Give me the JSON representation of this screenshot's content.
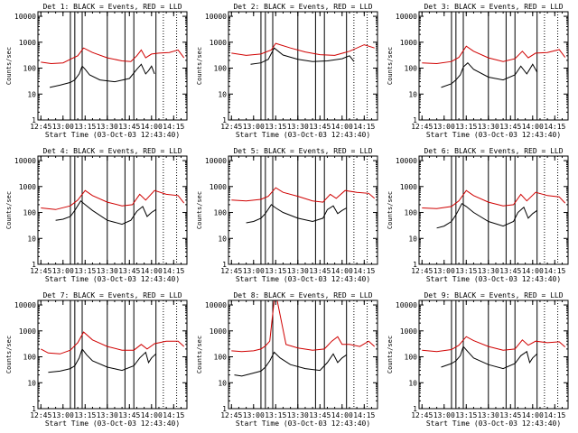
{
  "figure": {
    "background": "#ffffff",
    "events_color": "#000000",
    "lld_color": "#d00000"
  },
  "chart_data": [
    {
      "type": "line",
      "title": "Det 1: BLACK = Events, RED = LLD",
      "xlabel": "Start Time (03-Oct-03 12:43:40)",
      "ylabel": "Counts/sec",
      "ylog": true,
      "ylim": [
        1,
        15000
      ],
      "yticks": [
        "1",
        "10",
        "100",
        "1000",
        "10000"
      ],
      "xticks": [
        "12:45",
        "13:00",
        "13:15",
        "13:30",
        "13:45",
        "14:00",
        "14:15"
      ],
      "series": [
        {
          "role": "black",
          "x": [
            "12:51",
            "12:58",
            "13:05",
            "13:08",
            "13:11",
            "13:13",
            "13:15",
            "13:18",
            "13:25",
            "13:35",
            "13:45",
            "13:50",
            "13:53",
            "13:56",
            "13:58",
            "14:00",
            "14:02"
          ],
          "y": [
            18,
            22,
            28,
            35,
            60,
            120,
            90,
            55,
            35,
            30,
            40,
            90,
            140,
            60,
            80,
            120,
            60
          ]
        },
        {
          "role": "red",
          "x": [
            "12:45",
            "12:52",
            "13:00",
            "13:05",
            "13:10",
            "13:14",
            "13:20",
            "13:30",
            "13:40",
            "13:46",
            "13:50",
            "13:53",
            "13:56",
            "14:00",
            "14:05",
            "14:12",
            "14:18",
            "14:22"
          ],
          "y": [
            170,
            150,
            160,
            220,
            300,
            600,
            400,
            250,
            190,
            180,
            300,
            500,
            250,
            350,
            380,
            400,
            500,
            250
          ]
        }
      ],
      "vlines": [
        "13:05",
        "13:08",
        "13:13",
        "13:30",
        "13:42",
        "13:48",
        "14:03"
      ],
      "vdots": [
        "14:08",
        "14:17"
      ]
    },
    {
      "type": "line",
      "title": "Det 2: BLACK = Events, RED = LLD",
      "xlabel": "Start Time (03-Oct-03 12:43:40)",
      "ylabel": "Counts/sec",
      "ylog": true,
      "ylim": [
        1,
        15000
      ],
      "yticks": [
        "1",
        "10",
        "100",
        "1000",
        "10000"
      ],
      "xticks": [
        "12:45",
        "13:00",
        "13:15",
        "13:30",
        "13:45",
        "14:00",
        "14:15"
      ],
      "series": [
        {
          "role": "black",
          "x": [
            "12:58",
            "13:05",
            "13:10",
            "13:14",
            "13:20",
            "13:30",
            "13:40",
            "13:50",
            "14:00",
            "14:05",
            "14:08"
          ],
          "y": [
            140,
            160,
            220,
            600,
            320,
            220,
            180,
            190,
            230,
            300,
            180
          ]
        },
        {
          "role": "red",
          "x": [
            "12:45",
            "12:55",
            "13:05",
            "13:12",
            "13:15",
            "13:25",
            "13:35",
            "13:45",
            "13:55",
            "14:05",
            "14:15",
            "14:22"
          ],
          "y": [
            380,
            310,
            350,
            500,
            900,
            600,
            420,
            330,
            310,
            450,
            800,
            600
          ]
        }
      ],
      "vlines": [
        "13:05",
        "13:08",
        "13:13",
        "13:30",
        "13:42",
        "13:48",
        "14:03"
      ],
      "vdots": [
        "14:08",
        "14:17"
      ]
    },
    {
      "type": "line",
      "title": "Det 3: BLACK = Events, RED = LLD",
      "xlabel": "Start Time (03-Oct-03 12:43:40)",
      "ylabel": "Counts/sec",
      "ylog": true,
      "ylim": [
        1,
        15000
      ],
      "yticks": [
        "1",
        "10",
        "100",
        "1000",
        "10000"
      ],
      "xticks": [
        "12:45",
        "13:00",
        "13:15",
        "13:30",
        "13:45",
        "14:00",
        "14:15"
      ],
      "series": [
        {
          "role": "black",
          "x": [
            "12:58",
            "13:05",
            "13:08",
            "13:11",
            "13:13",
            "13:16",
            "13:20",
            "13:30",
            "13:40",
            "13:48",
            "13:52",
            "13:56",
            "13:58",
            "14:00",
            "14:03"
          ],
          "y": [
            18,
            25,
            35,
            55,
            110,
            160,
            90,
            45,
            35,
            55,
            120,
            60,
            90,
            140,
            70
          ]
        },
        {
          "role": "red",
          "x": [
            "12:45",
            "12:55",
            "13:05",
            "13:10",
            "13:15",
            "13:20",
            "13:30",
            "13:40",
            "13:48",
            "13:53",
            "13:57",
            "14:02",
            "14:10",
            "14:18",
            "14:22"
          ],
          "y": [
            160,
            150,
            180,
            260,
            700,
            450,
            250,
            180,
            230,
            450,
            250,
            380,
            400,
            520,
            260
          ]
        }
      ],
      "vlines": [
        "13:05",
        "13:08",
        "13:13",
        "13:30",
        "13:42",
        "13:48",
        "14:03"
      ],
      "vdots": [
        "14:08",
        "14:17"
      ]
    },
    {
      "type": "line",
      "title": "Det 4: BLACK = Events, RED = LLD",
      "xlabel": "Start Time (03-Oct-03 12:43:40)",
      "ylabel": "Counts/sec",
      "ylog": true,
      "ylim": [
        1,
        15000
      ],
      "yticks": [
        "1",
        "10",
        "100",
        "1000",
        "10000"
      ],
      "xticks": [
        "12:45",
        "13:00",
        "13:15",
        "13:30",
        "13:45",
        "14:00",
        "14:15"
      ],
      "series": [
        {
          "role": "black",
          "x": [
            "12:55",
            "13:00",
            "13:05",
            "13:08",
            "13:12",
            "13:15",
            "13:20",
            "13:30",
            "13:40",
            "13:46",
            "13:50",
            "13:54",
            "13:57",
            "14:00",
            "14:03"
          ],
          "y": [
            50,
            55,
            70,
            120,
            280,
            200,
            120,
            50,
            35,
            50,
            110,
            170,
            70,
            100,
            130
          ]
        },
        {
          "role": "red",
          "x": [
            "12:45",
            "12:55",
            "13:05",
            "13:10",
            "13:15",
            "13:20",
            "13:30",
            "13:40",
            "13:47",
            "13:52",
            "13:56",
            "14:02",
            "14:10",
            "14:18",
            "14:22"
          ],
          "y": [
            150,
            130,
            180,
            300,
            700,
            450,
            250,
            180,
            200,
            500,
            300,
            700,
            500,
            450,
            230
          ]
        }
      ],
      "vlines": [
        "13:05",
        "13:08",
        "13:13",
        "13:30",
        "13:42",
        "13:48",
        "14:03"
      ],
      "vdots": [
        "14:08",
        "14:17"
      ]
    },
    {
      "type": "line",
      "title": "Det 5: BLACK = Events, RED = LLD",
      "xlabel": "Start Time (03-Oct-03 12:43:40)",
      "ylabel": "Counts/sec",
      "ylog": true,
      "ylim": [
        1,
        15000
      ],
      "yticks": [
        "1",
        "10",
        "100",
        "1000",
        "10000"
      ],
      "xticks": [
        "12:45",
        "13:00",
        "13:15",
        "13:30",
        "13:45",
        "14:00",
        "14:15"
      ],
      "series": [
        {
          "role": "black",
          "x": [
            "12:55",
            "13:00",
            "13:05",
            "13:08",
            "13:12",
            "13:15",
            "13:20",
            "13:30",
            "13:40",
            "13:47",
            "13:50",
            "13:54",
            "13:57",
            "14:00",
            "14:03"
          ],
          "y": [
            40,
            45,
            60,
            90,
            200,
            150,
            100,
            60,
            45,
            60,
            130,
            180,
            90,
            120,
            150
          ]
        },
        {
          "role": "red",
          "x": [
            "12:45",
            "12:55",
            "13:05",
            "13:10",
            "13:15",
            "13:20",
            "13:30",
            "13:40",
            "13:47",
            "13:52",
            "13:56",
            "14:02",
            "14:10",
            "14:18",
            "14:22"
          ],
          "y": [
            300,
            280,
            320,
            420,
            900,
            600,
            420,
            280,
            250,
            500,
            350,
            700,
            600,
            550,
            350
          ]
        }
      ],
      "vlines": [
        "13:05",
        "13:08",
        "13:13",
        "13:30",
        "13:42",
        "13:48",
        "14:03"
      ],
      "vdots": [
        "14:08",
        "14:17"
      ]
    },
    {
      "type": "line",
      "title": "Det 6: BLACK = Events, RED = LLD",
      "xlabel": "Start Time (03-Oct-03 12:43:40)",
      "ylabel": "Counts/sec",
      "ylog": true,
      "ylim": [
        1,
        15000
      ],
      "yticks": [
        "1",
        "10",
        "100",
        "1000",
        "10000"
      ],
      "xticks": [
        "12:45",
        "13:00",
        "13:15",
        "13:30",
        "13:45",
        "14:00",
        "14:15"
      ],
      "series": [
        {
          "role": "black",
          "x": [
            "12:55",
            "13:00",
            "13:05",
            "13:08",
            "13:12",
            "13:15",
            "13:20",
            "13:30",
            "13:40",
            "13:47",
            "13:50",
            "13:54",
            "13:57",
            "14:00",
            "14:03"
          ],
          "y": [
            25,
            30,
            45,
            80,
            220,
            170,
            100,
            45,
            30,
            45,
            100,
            160,
            60,
            90,
            120
          ]
        },
        {
          "role": "red",
          "x": [
            "12:45",
            "12:55",
            "13:05",
            "13:10",
            "13:15",
            "13:20",
            "13:30",
            "13:40",
            "13:47",
            "13:52",
            "13:56",
            "14:02",
            "14:10",
            "14:18",
            "14:22"
          ],
          "y": [
            150,
            140,
            170,
            280,
            700,
            450,
            250,
            180,
            200,
            500,
            280,
            600,
            450,
            400,
            230
          ]
        }
      ],
      "vlines": [
        "13:05",
        "13:08",
        "13:13",
        "13:30",
        "13:42",
        "13:48",
        "14:03"
      ],
      "vdots": [
        "14:08",
        "14:17"
      ]
    },
    {
      "type": "line",
      "title": "Det 7: BLACK = Events, RED = LLD",
      "xlabel": "Start Time (03-Oct-03 12:43:40)",
      "ylabel": "Counts/sec",
      "ylog": true,
      "ylim": [
        1,
        15000
      ],
      "yticks": [
        "1",
        "10",
        "100",
        "1000",
        "10000"
      ],
      "xticks": [
        "12:45",
        "13:00",
        "13:15",
        "13:30",
        "13:45",
        "14:00",
        "14:15"
      ],
      "series": [
        {
          "role": "black",
          "x": [
            "12:50",
            "12:58",
            "13:05",
            "13:08",
            "13:11",
            "13:13",
            "13:16",
            "13:20",
            "13:30",
            "13:40",
            "13:48",
            "13:52",
            "13:56",
            "13:58",
            "14:00",
            "14:03"
          ],
          "y": [
            25,
            28,
            35,
            45,
            90,
            200,
            120,
            70,
            40,
            30,
            45,
            90,
            150,
            60,
            90,
            130
          ]
        },
        {
          "role": "red",
          "x": [
            "12:45",
            "12:50",
            "12:58",
            "13:05",
            "13:10",
            "13:14",
            "13:20",
            "13:30",
            "13:40",
            "13:48",
            "13:53",
            "13:57",
            "14:02",
            "14:10",
            "14:18",
            "14:22"
          ],
          "y": [
            200,
            140,
            130,
            180,
            350,
            900,
            450,
            250,
            180,
            180,
            300,
            200,
            320,
            400,
            400,
            250
          ]
        }
      ],
      "vlines": [
        "13:05",
        "13:08",
        "13:13",
        "13:30",
        "13:42",
        "13:48",
        "14:03"
      ],
      "vdots": [
        "14:08",
        "14:17"
      ]
    },
    {
      "type": "line",
      "title": "Det 8: BLACK = Events, RED = LLD",
      "xlabel": "Start Time (03-Oct-03 12:43:40)",
      "ylabel": "Counts/sec",
      "ylog": true,
      "ylim": [
        1,
        15000
      ],
      "yticks": [
        "1",
        "10",
        "100",
        "1000",
        "10000"
      ],
      "xticks": [
        "12:45",
        "13:00",
        "13:15",
        "13:30",
        "13:45",
        "14:00",
        "14:15"
      ],
      "series": [
        {
          "role": "black",
          "x": [
            "12:47",
            "12:52",
            "12:58",
            "13:05",
            "13:08",
            "13:11",
            "13:14",
            "13:18",
            "13:25",
            "13:35",
            "13:45",
            "13:50",
            "13:54",
            "13:57",
            "14:00",
            "14:03"
          ],
          "y": [
            20,
            18,
            22,
            28,
            40,
            70,
            150,
            90,
            50,
            35,
            30,
            60,
            130,
            60,
            90,
            120
          ]
        },
        {
          "role": "red",
          "x": [
            "12:45",
            "12:52",
            "13:00",
            "13:05",
            "13:08",
            "13:11",
            "13:14",
            "13:16",
            "13:22",
            "13:30",
            "13:40",
            "13:48",
            "13:53",
            "13:57",
            "14:00",
            "14:05",
            "14:12",
            "14:18",
            "14:22"
          ],
          "y": [
            170,
            160,
            170,
            200,
            260,
            400,
            15000,
            15000,
            300,
            220,
            180,
            200,
            400,
            600,
            300,
            300,
            250,
            400,
            250
          ]
        }
      ],
      "vlines": [
        "13:05",
        "13:08",
        "13:13",
        "13:30",
        "13:42",
        "13:48",
        "14:03"
      ],
      "vdots": [
        "14:08",
        "14:17"
      ]
    },
    {
      "type": "line",
      "title": "Det 9: BLACK = Events, RED = LLD",
      "xlabel": "Start Time (03-Oct-03 12:43:40)",
      "ylabel": "Counts/sec",
      "ylog": true,
      "ylim": [
        1,
        15000
      ],
      "yticks": [
        "1",
        "10",
        "100",
        "1000",
        "10000"
      ],
      "xticks": [
        "12:45",
        "13:00",
        "13:15",
        "13:30",
        "13:45",
        "14:00",
        "14:15"
      ],
      "series": [
        {
          "role": "black",
          "x": [
            "12:58",
            "13:05",
            "13:08",
            "13:11",
            "13:13",
            "13:16",
            "13:20",
            "13:30",
            "13:40",
            "13:48",
            "13:52",
            "13:56",
            "13:58",
            "14:00",
            "14:03"
          ],
          "y": [
            40,
            55,
            70,
            110,
            250,
            160,
            90,
            50,
            35,
            55,
            110,
            160,
            60,
            90,
            130
          ]
        },
        {
          "role": "red",
          "x": [
            "12:45",
            "12:55",
            "13:05",
            "13:10",
            "13:15",
            "13:20",
            "13:30",
            "13:40",
            "13:48",
            "13:53",
            "13:57",
            "14:02",
            "14:10",
            "14:18",
            "14:22"
          ],
          "y": [
            180,
            160,
            190,
            280,
            600,
            420,
            250,
            180,
            200,
            450,
            280,
            400,
            350,
            380,
            240
          ]
        }
      ],
      "vlines": [
        "13:05",
        "13:08",
        "13:13",
        "13:30",
        "13:42",
        "13:48",
        "14:03"
      ],
      "vdots": [
        "14:08",
        "14:17"
      ]
    }
  ]
}
